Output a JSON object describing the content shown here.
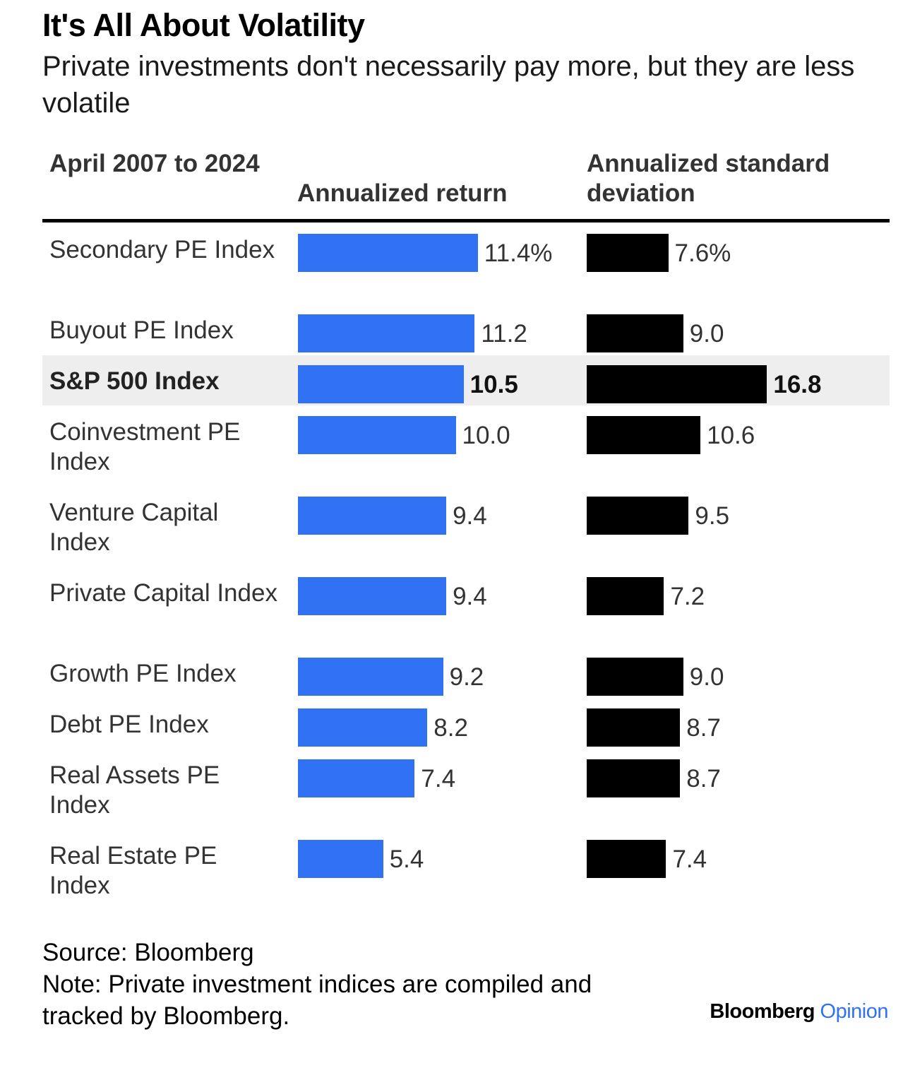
{
  "title": "It's All About Volatility",
  "subtitle": "Private investments don't necessarily pay more, but they are less volatile",
  "chart_data": {
    "type": "table",
    "columns": [
      "April 2007 to 2024",
      "Annualized return",
      "Annualized standard deviation"
    ],
    "rows": [
      {
        "name": "Secondary PE Index",
        "return": 11.4,
        "return_label": "11.4%",
        "std": 7.6,
        "std_label": "7.6%",
        "highlight": false
      },
      {
        "name": "Buyout PE Index",
        "return": 11.2,
        "return_label": "11.2",
        "std": 9.0,
        "std_label": "9.0",
        "highlight": false
      },
      {
        "name": "S&P 500 Index",
        "return": 10.5,
        "return_label": "10.5",
        "std": 16.8,
        "std_label": "16.8",
        "highlight": true
      },
      {
        "name": "Coinvestment PE Index",
        "return": 10.0,
        "return_label": "10.0",
        "std": 10.6,
        "std_label": "10.6",
        "highlight": false
      },
      {
        "name": "Venture Capital Index",
        "return": 9.4,
        "return_label": "9.4",
        "std": 9.5,
        "std_label": "9.5",
        "highlight": false
      },
      {
        "name": "Private Capital Index",
        "return": 9.4,
        "return_label": "9.4",
        "std": 7.2,
        "std_label": "7.2",
        "highlight": false
      },
      {
        "name": "Growth PE Index",
        "return": 9.2,
        "return_label": "9.2",
        "std": 9.0,
        "std_label": "9.0",
        "highlight": false
      },
      {
        "name": "Debt PE Index",
        "return": 8.2,
        "return_label": "8.2",
        "std": 8.7,
        "std_label": "8.7",
        "highlight": false
      },
      {
        "name": "Real Assets PE Index",
        "return": 7.4,
        "return_label": "7.4",
        "std": 8.7,
        "std_label": "8.7",
        "highlight": false
      },
      {
        "name": "Real Estate PE Index",
        "return": 5.4,
        "return_label": "5.4",
        "std": 7.4,
        "std_label": "7.4",
        "highlight": false
      }
    ],
    "colors": {
      "return_bar": "#3172f5",
      "std_bar": "#000000",
      "highlight_bg": "#eeeeee"
    }
  },
  "footer": {
    "source": "Source: Bloomberg",
    "note": "Note: Private investment indices are compiled and tracked by Bloomberg."
  },
  "brand": {
    "part1": "Bloomberg",
    "part2": "Opinion"
  }
}
